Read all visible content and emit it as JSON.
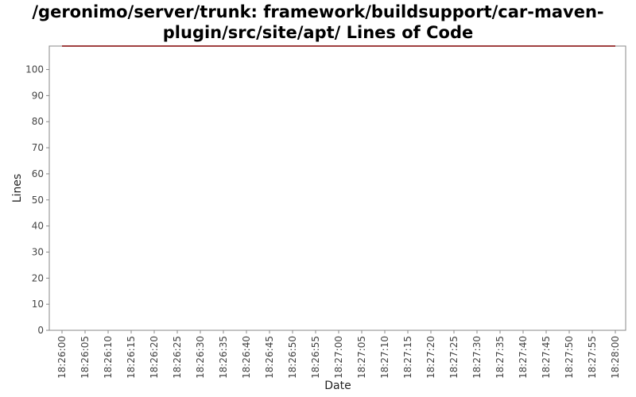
{
  "title_lines": [
    "/geronimo/server/trunk: framework/buildsupport/car-maven-",
    "plugin/src/site/apt/ Lines of Code"
  ],
  "chart_data": {
    "type": "line",
    "title": "/geronimo/server/trunk: framework/buildsupport/car-maven-plugin/src/site/apt/ Lines of Code",
    "xlabel": "Date",
    "ylabel": "Lines",
    "ylim": [
      0,
      109
    ],
    "yticks": [
      0,
      10,
      20,
      30,
      40,
      50,
      60,
      70,
      80,
      90,
      100
    ],
    "xticks": [
      "18:26:00",
      "18:26:05",
      "18:26:10",
      "18:26:15",
      "18:26:20",
      "18:26:25",
      "18:26:30",
      "18:26:35",
      "18:26:40",
      "18:26:45",
      "18:26:50",
      "18:26:55",
      "18:27:00",
      "18:27:05",
      "18:27:10",
      "18:27:15",
      "18:27:20",
      "18:27:25",
      "18:27:30",
      "18:27:35",
      "18:27:40",
      "18:27:45",
      "18:27:50",
      "18:27:55",
      "18:28:00"
    ],
    "grid": false,
    "legend": "none",
    "series": [
      {
        "x": [
          "18:26:00",
          "18:28:00"
        ],
        "values": [
          109,
          109
        ],
        "color": "#800000"
      }
    ]
  }
}
